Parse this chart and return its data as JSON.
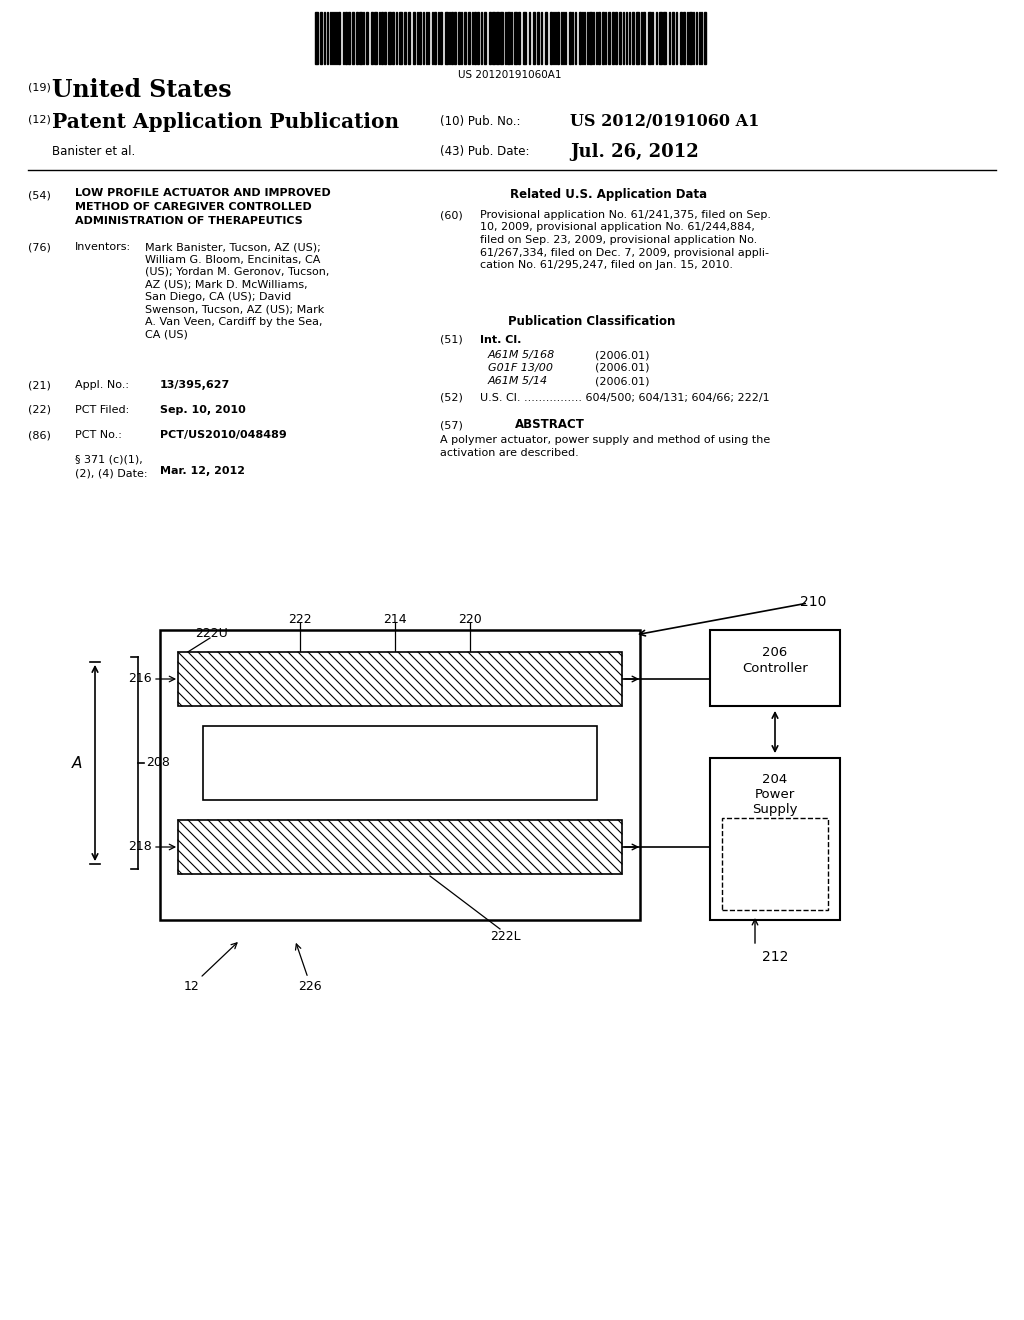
{
  "background_color": "#ffffff",
  "barcode_text": "US 20120191060A1",
  "field54_title_line1": "LOW PROFILE ACTUATOR AND IMPROVED",
  "field54_title_line2": "METHOD OF CAREGIVER CONTROLLED",
  "field54_title_line3": "ADMINISTRATION OF THERAPEUTICS",
  "field76_title": "Inventors:",
  "inv_lines": [
    "Mark Banister, Tucson, AZ (US);",
    "William G. Bloom, Encinitas, CA",
    "(US); Yordan M. Geronov, Tucson,",
    "AZ (US); Mark D. McWilliams,",
    "San Diego, CA (US); David",
    "Swenson, Tucson, AZ (US); Mark",
    "A. Van Veen, Cardiff by the Sea,",
    "CA (US)"
  ],
  "field21_value": "13/395,627",
  "field22_value": "Sep. 10, 2010",
  "field86_value": "PCT/US2010/048489",
  "field86b_value": "Mar. 12, 2012",
  "related_title": "Related U.S. Application Data",
  "field60_lines": [
    "Provisional application No. 61/241,375, filed on Sep.",
    "10, 2009, provisional application No. 61/244,884,",
    "filed on Sep. 23, 2009, provisional application No.",
    "61/267,334, filed on Dec. 7, 2009, provisional appli-",
    "cation No. 61/295,247, filed on Jan. 15, 2010."
  ],
  "pub_class_title": "Publication Classification",
  "field51_entries": [
    [
      "A61M 5/168",
      "(2006.01)"
    ],
    [
      "G01F 13/00",
      "(2006.01)"
    ],
    [
      "A61M 5/14",
      "(2006.01)"
    ]
  ],
  "field52_text": "U.S. Cl. ................ 604/500; 604/131; 604/66; 222/1",
  "field57_title": "ABSTRACT",
  "field57_lines": [
    "A polymer actuator, power supply and method of using the",
    "activation are described."
  ],
  "diagram_label_210": "210",
  "diagram_label_206": "206",
  "diagram_label_controller": "Controller",
  "diagram_label_204": "204",
  "diagram_label_power": "Power",
  "diagram_label_supply": "Supply",
  "diagram_label_212": "212",
  "diagram_label_222": "222",
  "diagram_label_214": "214",
  "diagram_label_220": "220",
  "diagram_label_222U": "222U",
  "diagram_label_216": "216",
  "diagram_label_208": "208",
  "diagram_label_A": "A",
  "diagram_label_218": "218",
  "diagram_label_222L": "222L",
  "diagram_label_12": "12",
  "diagram_label_226": "226"
}
